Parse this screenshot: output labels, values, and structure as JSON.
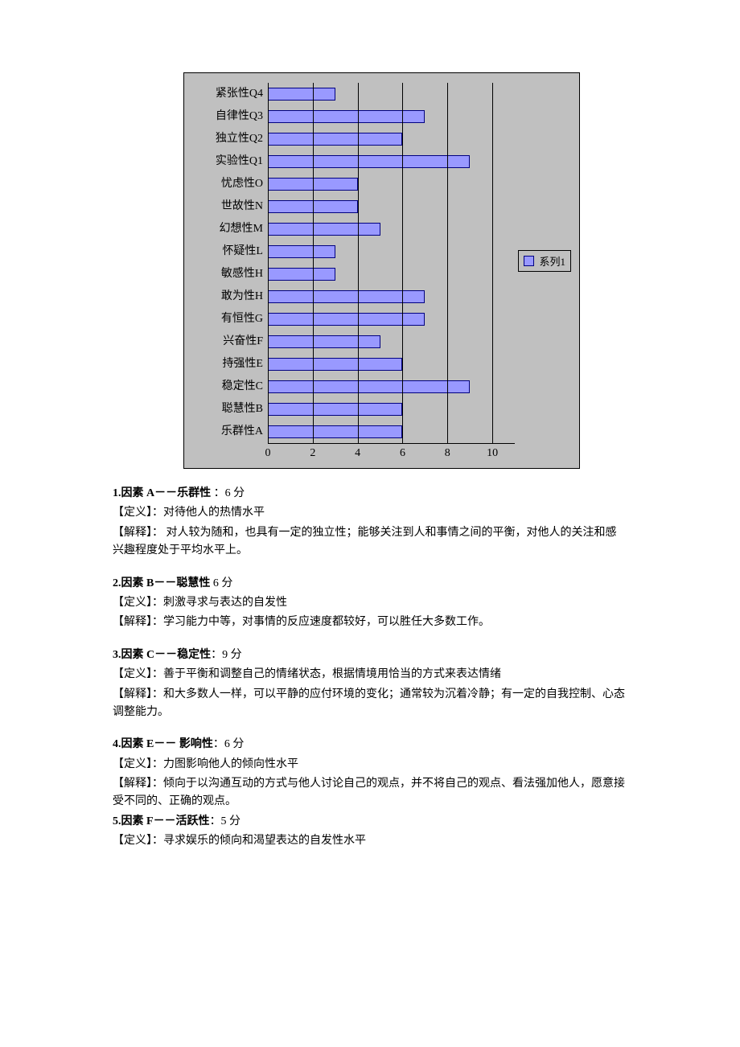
{
  "chart": {
    "type": "bar-horizontal",
    "x_min": 0,
    "x_max": 11,
    "x_ticks": [
      0,
      2,
      4,
      6,
      8,
      10
    ],
    "bar_color": "#9999ff",
    "bar_border": "#000080",
    "gridline_color": "#000000",
    "plot_background": "#c0c0c0",
    "legend_label": "系列1",
    "categories": [
      {
        "label": "紧张性Q4",
        "value": 3
      },
      {
        "label": "自律性Q3",
        "value": 7
      },
      {
        "label": "独立性Q2",
        "value": 6
      },
      {
        "label": "实验性Q1",
        "value": 9
      },
      {
        "label": "忧虑性O",
        "value": 4
      },
      {
        "label": "世故性N",
        "value": 4
      },
      {
        "label": "幻想性M",
        "value": 5
      },
      {
        "label": "怀疑性L",
        "value": 3
      },
      {
        "label": "敏感性H",
        "value": 3
      },
      {
        "label": "敢为性H",
        "value": 7
      },
      {
        "label": "有恒性G",
        "value": 7
      },
      {
        "label": "兴奋性F",
        "value": 5
      },
      {
        "label": "持强性E",
        "value": 6
      },
      {
        "label": "稳定性C",
        "value": 9
      },
      {
        "label": "聪慧性B",
        "value": 6
      },
      {
        "label": "乐群性A",
        "value": 6
      }
    ]
  },
  "sections": [
    {
      "num": "1",
      "letter": "A",
      "name": "乐群性",
      "score_label": " ：6 分",
      "def": "对待他人的热情水平",
      "exp": " 对人较为随和，也具有一定的独立性；能够关注到人和事情之间的平衡，对他人的关注和感兴趣程度处于平均水平上。"
    },
    {
      "num": "2",
      "letter": "B",
      "name": "聪慧性",
      "score_label": " 6 分",
      "def": "刺激寻求与表达的自发性",
      "exp": "学习能力中等，对事情的反应速度都较好，可以胜任大多数工作。"
    },
    {
      "num": "3",
      "letter": "C",
      "name": "稳定性",
      "score_label": "：9 分",
      "def": "善于平衡和调整自己的情绪状态，根据情境用恰当的方式来表达情绪",
      "exp": "和大多数人一样，可以平静的应付环境的变化；通常较为沉着冷静；有一定的自我控制、心态调整能力。"
    },
    {
      "num": "4",
      "letter": "E",
      "name": " 影响性",
      "score_label": "：6 分",
      "def": "力图影响他人的倾向性水平",
      "exp": "倾向于以沟通互动的方式与他人讨论自己的观点，并不将自己的观点、看法强加他人，愿意接受不同的、正确的观点。"
    },
    {
      "num": "5",
      "letter": "F",
      "name": "活跃性",
      "score_label": "：5 分",
      "def": "寻求娱乐的倾向和渴望表达的自发性水平",
      "exp": null
    }
  ],
  "labels": {
    "factor_word": "因素",
    "dashdash": "－－",
    "def_prefix": "【定义】：",
    "exp_prefix": "【解释】："
  }
}
